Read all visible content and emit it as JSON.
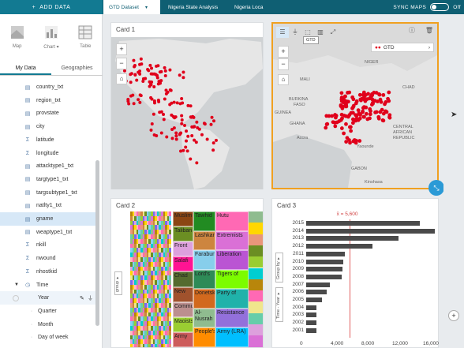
{
  "topbar": {
    "add_data": "ADD DATA",
    "tabs": [
      {
        "label": "GTD Dataset"
      },
      {
        "label": "Nigeria State Analysis"
      },
      {
        "label": "Nigeria Loca"
      }
    ],
    "sync_label": "SYNC MAPS",
    "sync_state": "Off"
  },
  "sidebar": {
    "vis_buttons": [
      {
        "label": "Map"
      },
      {
        "label": "Chart ▾"
      },
      {
        "label": "Table"
      }
    ],
    "subtabs": [
      {
        "label": "My Data"
      },
      {
        "label": "Geographies"
      }
    ],
    "fields": [
      {
        "icon": "▤",
        "label": "country_txt"
      },
      {
        "icon": "▤",
        "label": "region_txt"
      },
      {
        "icon": "▤",
        "label": "provstate"
      },
      {
        "icon": "▤",
        "label": "city"
      },
      {
        "icon": "Σ",
        "label": "latitude"
      },
      {
        "icon": "Σ",
        "label": "longitude"
      },
      {
        "icon": "▤",
        "label": "attacktype1_txt"
      },
      {
        "icon": "▤",
        "label": "targtype1_txt"
      },
      {
        "icon": "▤",
        "label": "targsubtype1_txt"
      },
      {
        "icon": "▤",
        "label": "natlty1_txt"
      },
      {
        "icon": "▤",
        "label": "gname"
      },
      {
        "icon": "▤",
        "label": "weaptype1_txt"
      },
      {
        "icon": "Σ",
        "label": "nkill"
      },
      {
        "icon": "Σ",
        "label": "nwound"
      },
      {
        "icon": "Σ",
        "label": "nhostkid"
      },
      {
        "icon": "◷",
        "label": "Time"
      },
      {
        "icon": "",
        "label": "Year"
      },
      {
        "icon": "",
        "label": "Quarter"
      },
      {
        "icon": "",
        "label": "Month"
      },
      {
        "icon": "",
        "label": "Day of week"
      }
    ]
  },
  "cards": {
    "card1": {
      "title": "Card 1"
    },
    "card2": {
      "title": "Card 2"
    },
    "card3": {
      "title": "Card 3"
    },
    "card4": {
      "legend": "GTD",
      "tooltip": "GTD"
    }
  },
  "map2_labels": [
    {
      "text": "NIGER",
      "x": 462,
      "y": 76
    },
    {
      "text": "MALI",
      "x": 380,
      "y": 98
    },
    {
      "text": "CHAD",
      "x": 510,
      "y": 108
    },
    {
      "text": "BURKINA",
      "x": 366,
      "y": 123
    },
    {
      "text": "FASO",
      "x": 372,
      "y": 130
    },
    {
      "text": "GUINEA",
      "x": 348,
      "y": 140
    },
    {
      "text": "GHANA",
      "x": 367,
      "y": 154
    },
    {
      "text": "Accra",
      "x": 376,
      "y": 172
    },
    {
      "text": "Yaounde",
      "x": 452,
      "y": 183
    },
    {
      "text": "CENTRAL",
      "x": 498,
      "y": 158
    },
    {
      "text": "AFRICAN",
      "x": 498,
      "y": 165
    },
    {
      "text": "REPUBLIC",
      "x": 498,
      "y": 172
    },
    {
      "text": "GABON",
      "x": 445,
      "y": 211
    },
    {
      "text": "Kinshasa",
      "x": 462,
      "y": 228
    }
  ],
  "treemap_labels": [
    "Muslim",
    "Tawhid",
    "Hutu",
    "Extremists",
    "Taliban",
    "Lashkar-",
    "Liberation",
    "Tigers of",
    "Chad",
    "New",
    "Farabundo",
    "Party of",
    "Lord's",
    "Resistance",
    "Army (LRA)",
    "Donetsk",
    "People's",
    "Al-Nusrah",
    "Front",
    "Salafi",
    "Communist",
    "Maoists",
    "Army"
  ],
  "chart_data": {
    "type": "bar",
    "title": "",
    "annotation": "x̄ = 5,600",
    "categories": [
      "2015",
      "2014",
      "2013",
      "2012",
      "2011",
      "2010",
      "2009",
      "2008",
      "2007",
      "2006",
      "2005",
      "2004",
      "2003",
      "2002",
      "2001"
    ],
    "values": [
      14800,
      16700,
      12000,
      8600,
      5000,
      4800,
      4700,
      4600,
      3100,
      2700,
      2000,
      1300,
      1300,
      1300,
      1300
    ],
    "xticks": [
      "0",
      "4,000",
      "8,000",
      "12,000",
      "16,000"
    ],
    "xlim": [
      0,
      16000
    ],
    "side_labels": [
      "Group by ▾",
      "Time - Year ▾"
    ]
  }
}
